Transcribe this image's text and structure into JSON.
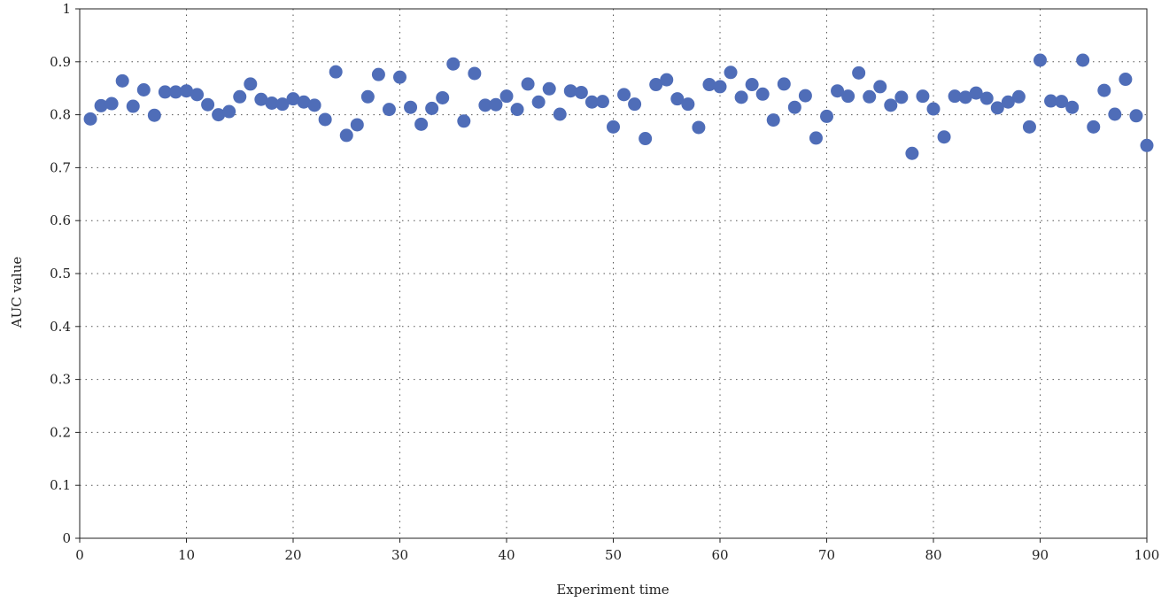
{
  "chart_data": {
    "type": "scatter",
    "title": "",
    "xlabel": "Experiment time",
    "ylabel": "AUC value",
    "xlim": [
      0,
      100
    ],
    "ylim": [
      0,
      1
    ],
    "xticks": [
      0,
      10,
      20,
      30,
      40,
      50,
      60,
      70,
      80,
      90,
      100
    ],
    "yticks": [
      0,
      0.1,
      0.2,
      0.3,
      0.4,
      0.5,
      0.6,
      0.7,
      0.8,
      0.9,
      1
    ],
    "ytick_labels": [
      "0",
      "0.1",
      "0.2",
      "0.3",
      "0.4",
      "0.5",
      "0.6",
      "0.7",
      "0.8",
      "0.9",
      "1"
    ],
    "grid": "dotted",
    "marker_color": "#4f6db8",
    "series": [
      {
        "x": [
          1,
          2,
          3,
          4,
          5,
          6,
          7,
          8,
          9,
          10,
          11,
          12,
          13,
          14,
          15,
          16,
          17,
          18,
          19,
          20,
          21,
          22,
          23,
          24,
          25,
          26,
          27,
          28,
          29,
          30,
          31,
          32,
          33,
          34,
          35,
          36,
          37,
          38,
          39,
          40,
          41,
          42,
          43,
          44,
          45,
          46,
          47,
          48,
          49,
          50,
          51,
          52,
          53,
          54,
          55,
          56,
          57,
          58,
          59,
          60,
          61,
          62,
          63,
          64,
          65,
          66,
          67,
          68,
          69,
          70,
          71,
          72,
          73,
          74,
          75,
          76,
          77,
          78,
          79,
          80,
          81,
          82,
          83,
          84,
          85,
          86,
          87,
          88,
          89,
          90,
          91,
          92,
          93,
          94,
          95,
          96,
          97,
          98,
          99,
          100
        ],
        "y": [
          0.792,
          0.817,
          0.821,
          0.864,
          0.816,
          0.847,
          0.799,
          0.843,
          0.843,
          0.845,
          0.838,
          0.819,
          0.8,
          0.806,
          0.834,
          0.858,
          0.829,
          0.822,
          0.82,
          0.83,
          0.824,
          0.818,
          0.791,
          0.881,
          0.761,
          0.781,
          0.834,
          0.876,
          0.81,
          0.871,
          0.814,
          0.782,
          0.812,
          0.832,
          0.896,
          0.788,
          0.878,
          0.818,
          0.819,
          0.835,
          0.81,
          0.858,
          0.824,
          0.849,
          0.801,
          0.845,
          0.842,
          0.824,
          0.825,
          0.777,
          0.838,
          0.82,
          0.755,
          0.857,
          0.866,
          0.83,
          0.82,
          0.776,
          0.857,
          0.853,
          0.88,
          0.833,
          0.857,
          0.839,
          0.79,
          0.858,
          0.814,
          0.836,
          0.756,
          0.797,
          0.845,
          0.835,
          0.879,
          0.834,
          0.853,
          0.818,
          0.833,
          0.727,
          0.835,
          0.811,
          0.758,
          0.835,
          0.833,
          0.841,
          0.831,
          0.813,
          0.824,
          0.834,
          0.777,
          0.903,
          0.826,
          0.825,
          0.814,
          0.903,
          0.777,
          0.846,
          0.801,
          0.867,
          0.798,
          0.742
        ]
      }
    ]
  }
}
